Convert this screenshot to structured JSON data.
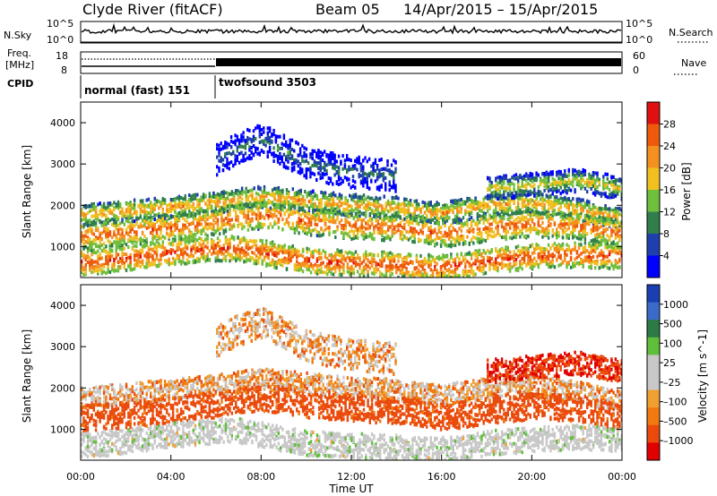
{
  "header": {
    "station": "Clyde River (fitACF)",
    "beam": "Beam 05",
    "date_range": "14/Apr/2015 – 15/Apr/2015"
  },
  "status_panels": {
    "nsky_label": "N.Sky",
    "nsky_ticks": [
      "10^5",
      "10^0"
    ],
    "nsearch_label": "N.Search",
    "nsearch_ticks": [
      "10^5",
      "10^0"
    ],
    "freq_label": "Freq.",
    "freq_unit": "[MHz]",
    "freq_ticks": [
      "18",
      "8"
    ],
    "nave_label": "Nave",
    "nave_ticks": [
      "60",
      "0"
    ],
    "cpid_label": "CPID",
    "cpid_segments": [
      {
        "name": "normal (fast) 151",
        "start_hour": 0,
        "end_hour": 6
      },
      {
        "name": "twofsound 3503",
        "start_hour": 6,
        "end_hour": 24
      }
    ]
  },
  "colors": {
    "power_scale": [
      "#0000ff",
      "#1f3fae",
      "#2f7e4c",
      "#6fbe3c",
      "#f0c020",
      "#f39020",
      "#ee5a0c",
      "#e01010"
    ],
    "velocity_scale": [
      "#1a3fb0",
      "#3a6bc8",
      "#2c7a46",
      "#5fbf3a",
      "#c8c8c8",
      "#c8c8c8",
      "#f0a030",
      "#f07a10",
      "#ea4a0c",
      "#e00000"
    ]
  },
  "chart_data": [
    {
      "type": "heatmap",
      "panel": "power",
      "ylabel": "Slant Range [km]",
      "yticks": [
        "1000",
        "2000",
        "3000",
        "4000"
      ],
      "ylim": [
        250,
        4500
      ],
      "colorbar_label": "Power [dB]",
      "colorbar_ticks": [
        "28",
        "24",
        "20",
        "16",
        "12",
        "8",
        "4"
      ],
      "colorbar_range": [
        0,
        32
      ],
      "bands": [
        {
          "x": [
            0,
            2,
            4,
            6,
            7,
            8,
            9,
            10,
            12,
            14,
            15,
            16,
            17,
            18,
            20,
            22,
            24
          ],
          "y": [
            1750,
            1850,
            1950,
            2050,
            2150,
            2200,
            2150,
            2100,
            2000,
            1950,
            1850,
            1800,
            1900,
            2000,
            2050,
            1900,
            1650
          ],
          "width": 260,
          "power": 22
        },
        {
          "x": [
            0,
            2,
            4,
            6,
            7,
            8,
            9,
            10,
            12,
            14,
            15,
            16,
            17,
            18,
            20,
            22,
            24
          ],
          "y": [
            1250,
            1350,
            1450,
            1600,
            1700,
            1750,
            1700,
            1600,
            1500,
            1450,
            1400,
            1300,
            1350,
            1450,
            1550,
            1500,
            1300
          ],
          "width": 320,
          "power": 26
        },
        {
          "x": [
            0,
            2,
            4,
            6,
            7,
            8,
            9,
            10,
            12,
            14,
            15,
            16,
            17,
            18,
            20,
            22,
            24
          ],
          "y": [
            600,
            700,
            850,
            950,
            950,
            850,
            750,
            650,
            600,
            550,
            500,
            500,
            550,
            650,
            750,
            800,
            750
          ],
          "width": 300,
          "power": 28
        },
        {
          "x": [
            6,
            7,
            8,
            9,
            10,
            12,
            14
          ],
          "y": [
            3100,
            3400,
            3600,
            3300,
            3000,
            2800,
            2700
          ],
          "width": 380,
          "power": 10
        },
        {
          "x": [
            18,
            20,
            22,
            24
          ],
          "y": [
            2400,
            2500,
            2600,
            2400
          ],
          "width": 280,
          "power": 18
        }
      ]
    },
    {
      "type": "heatmap",
      "panel": "velocity",
      "ylabel": "Slant Range [km]",
      "yticks": [
        "1000",
        "2000",
        "3000",
        "4000"
      ],
      "ylim": [
        250,
        4500
      ],
      "colorbar_label": "Velocity [m s^-1]",
      "colorbar_ticks": [
        "1000",
        "500",
        "100",
        "25",
        "–25",
        "–100",
        "–500",
        "–1000"
      ],
      "colorbar_range": [
        -1000,
        1000
      ],
      "xlabel": "Time UT",
      "xticks": [
        "00:00",
        "04:00",
        "08:00",
        "12:00",
        "16:00",
        "20:00",
        "00:00"
      ],
      "xlim": [
        0,
        24
      ],
      "bands": [
        {
          "x": [
            0,
            2,
            4,
            6,
            7,
            8,
            9,
            10,
            12,
            14,
            15,
            16,
            17,
            18,
            20,
            22,
            24
          ],
          "y": [
            1750,
            1850,
            1950,
            2050,
            2150,
            2200,
            2150,
            2100,
            2000,
            1950,
            1850,
            1800,
            1900,
            2000,
            2050,
            1900,
            1650
          ],
          "width": 260,
          "velocity": 0
        },
        {
          "x": [
            0,
            2,
            4,
            6,
            7,
            8,
            9,
            10,
            12,
            14,
            15,
            16,
            17,
            18,
            20,
            22,
            24
          ],
          "y": [
            1250,
            1350,
            1450,
            1600,
            1700,
            1750,
            1700,
            1600,
            1500,
            1450,
            1400,
            1300,
            1350,
            1450,
            1550,
            1500,
            1300
          ],
          "width": 320,
          "velocity": -200
        },
        {
          "x": [
            0,
            2,
            4,
            6,
            7,
            8,
            9,
            10,
            12,
            14,
            15,
            16,
            17,
            18,
            20,
            22,
            24
          ],
          "y": [
            600,
            700,
            850,
            950,
            950,
            850,
            750,
            650,
            600,
            550,
            500,
            500,
            550,
            650,
            750,
            800,
            750
          ],
          "width": 300,
          "velocity": 150
        },
        {
          "x": [
            6,
            7,
            8,
            9,
            10,
            12,
            14
          ],
          "y": [
            3100,
            3400,
            3600,
            3300,
            3000,
            2800,
            2700
          ],
          "width": 380,
          "velocity": 0
        },
        {
          "x": [
            18,
            20,
            22,
            24
          ],
          "y": [
            2400,
            2500,
            2600,
            2400
          ],
          "width": 280,
          "velocity": -500
        }
      ]
    }
  ]
}
